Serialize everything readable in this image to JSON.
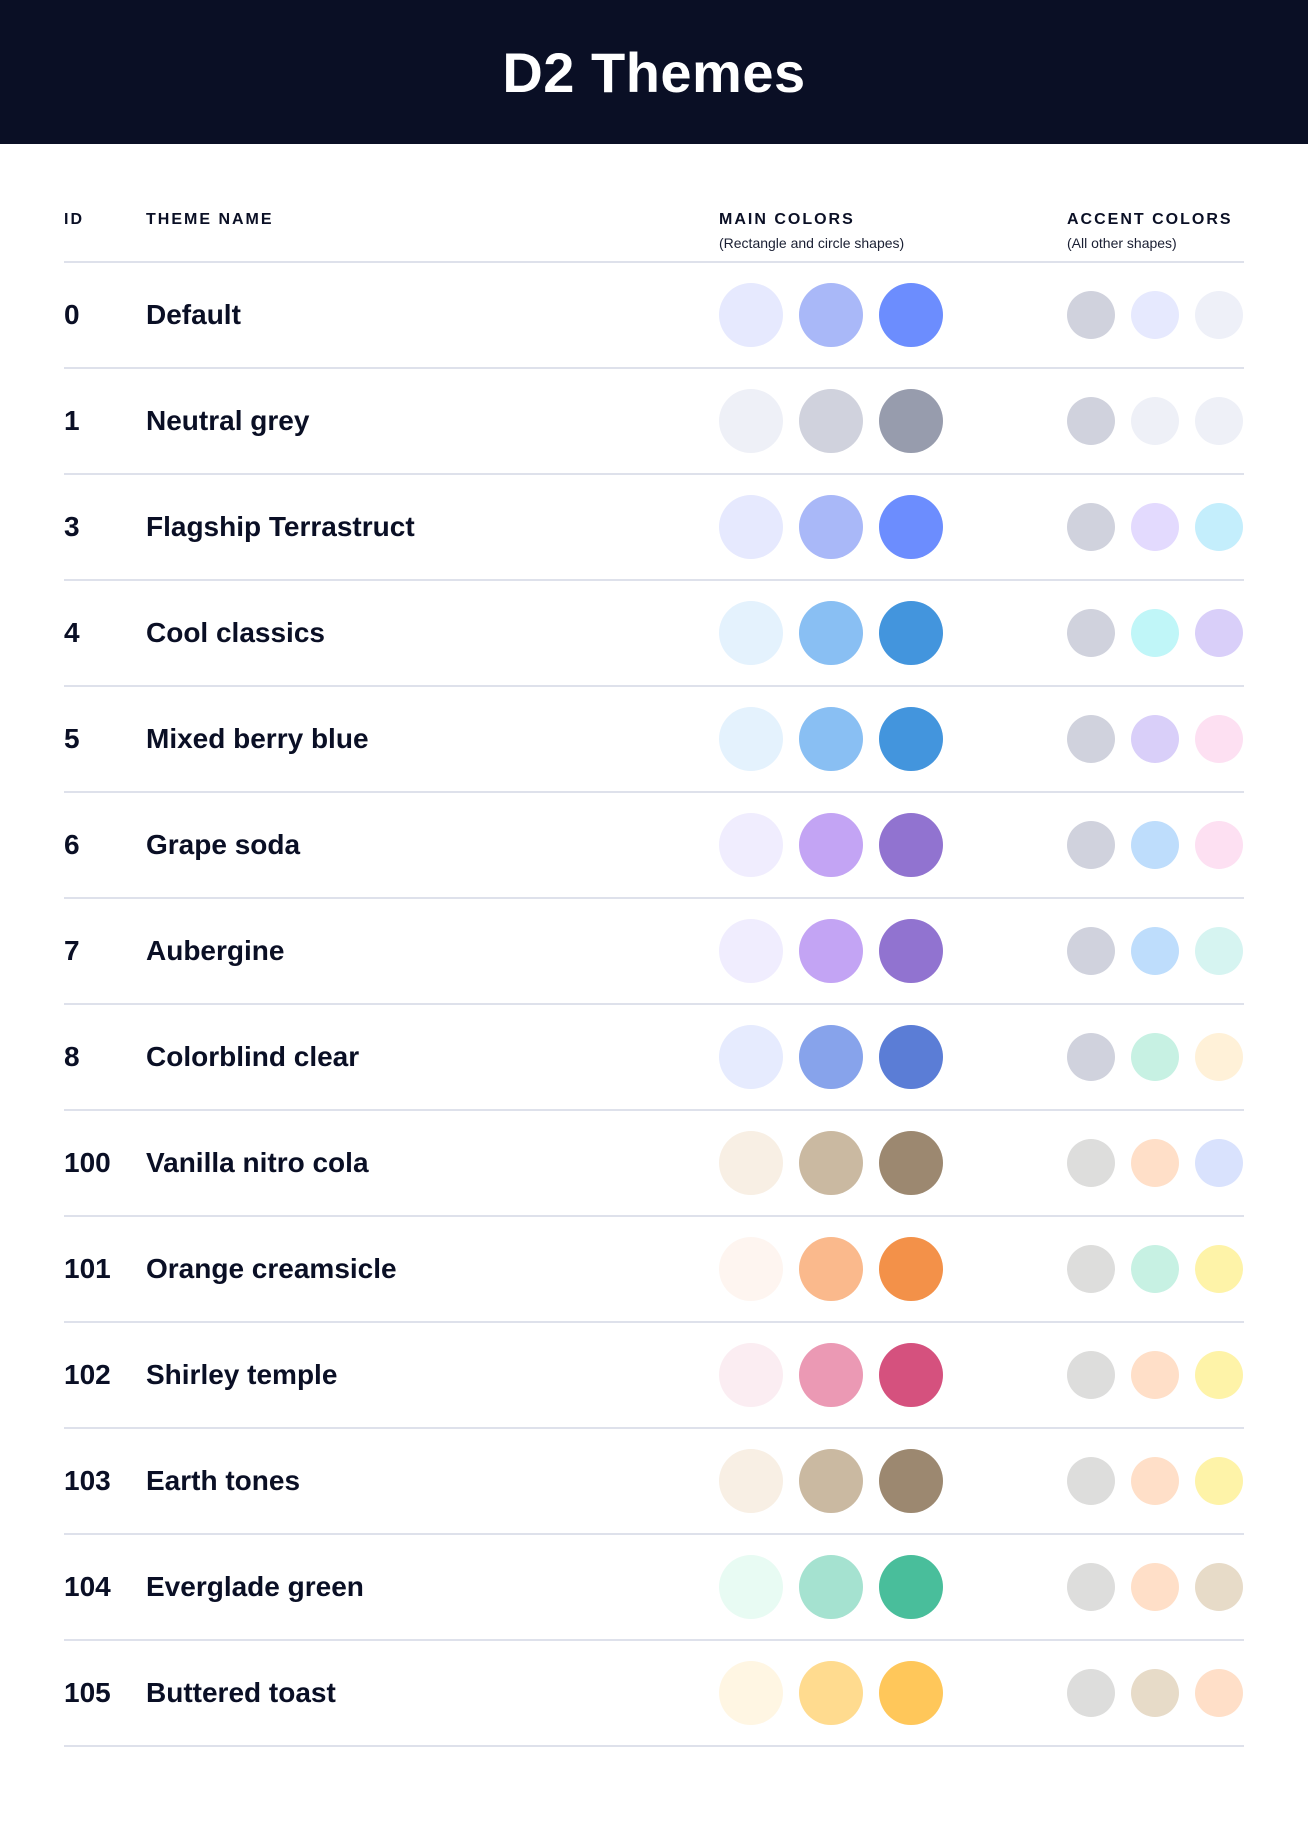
{
  "title": "D2 Themes",
  "columns": {
    "id": "ID",
    "name": "THEME NAME",
    "main": "MAIN COLORS",
    "main_sub": "(Rectangle and circle shapes)",
    "accent": "ACCENT COLORS",
    "accent_sub": "(All other shapes)"
  },
  "themes": [
    {
      "id": "0",
      "name": "Default",
      "main": [
        "#E6E9FE",
        "#A9B8F8",
        "#6C8DFE"
      ],
      "accent": [
        "#D0D2DD",
        "#E6E9FE",
        "#EEF0F8"
      ]
    },
    {
      "id": "1",
      "name": "Neutral grey",
      "main": [
        "#EEF0F7",
        "#D0D2DD",
        "#979CAD"
      ],
      "accent": [
        "#D0D2DD",
        "#EEF0F7",
        "#EEF0F7"
      ]
    },
    {
      "id": "3",
      "name": "Flagship Terrastruct",
      "main": [
        "#E6E9FE",
        "#A9B8F8",
        "#6C8DFE"
      ],
      "accent": [
        "#D0D2DD",
        "#E3DAFE",
        "#C4EEFC"
      ]
    },
    {
      "id": "4",
      "name": "Cool classics",
      "main": [
        "#E4F2FD",
        "#89BFF3",
        "#4395DD"
      ],
      "accent": [
        "#D0D2DD",
        "#C0F6F8",
        "#D9CFF9"
      ]
    },
    {
      "id": "5",
      "name": "Mixed berry blue",
      "main": [
        "#E4F2FD",
        "#89BFF3",
        "#4395DD"
      ],
      "accent": [
        "#D0D2DD",
        "#D9CFF9",
        "#FDE0F2"
      ]
    },
    {
      "id": "6",
      "name": "Grape soda",
      "main": [
        "#F0EDFE",
        "#C3A4F4",
        "#9173D0"
      ],
      "accent": [
        "#D0D2DD",
        "#BEDDFC",
        "#FDE0F2"
      ]
    },
    {
      "id": "7",
      "name": "Aubergine",
      "main": [
        "#F0EDFE",
        "#C3A4F4",
        "#9173D0"
      ],
      "accent": [
        "#D0D2DD",
        "#BEDDFC",
        "#D6F4F1"
      ]
    },
    {
      "id": "8",
      "name": "Colorblind clear",
      "main": [
        "#E6EBFE",
        "#87A3EB",
        "#5B7DD6"
      ],
      "accent": [
        "#D0D2DD",
        "#C7F1E3",
        "#FFF1D8"
      ]
    },
    {
      "id": "100",
      "name": "Vanilla nitro cola",
      "main": [
        "#F8EFE4",
        "#CAB9A1",
        "#9C8870"
      ],
      "accent": [
        "#DDDDDC",
        "#FFDFC8",
        "#D9E2FD"
      ]
    },
    {
      "id": "101",
      "name": "Orange creamsicle",
      "main": [
        "#FEF5F0",
        "#FAB98C",
        "#F39149"
      ],
      "accent": [
        "#DDDDDC",
        "#C7F1E3",
        "#FEF3A8"
      ]
    },
    {
      "id": "102",
      "name": "Shirley temple",
      "main": [
        "#FBEDF2",
        "#EB99B4",
        "#D5517E"
      ],
      "accent": [
        "#DDDDDC",
        "#FFDFC8",
        "#FEF3A8"
      ]
    },
    {
      "id": "103",
      "name": "Earth tones",
      "main": [
        "#F8EFE4",
        "#CAB9A1",
        "#9C8870"
      ],
      "accent": [
        "#DDDDDC",
        "#FFDFC8",
        "#FEF3A8"
      ]
    },
    {
      "id": "104",
      "name": "Everglade green",
      "main": [
        "#E8FBF3",
        "#A5E2D0",
        "#49BE9B"
      ],
      "accent": [
        "#DDDDDC",
        "#FFDFC8",
        "#E7DBC8"
      ]
    },
    {
      "id": "105",
      "name": "Buttered toast",
      "main": [
        "#FFF6E3",
        "#FFDB8F",
        "#FFC75A"
      ],
      "accent": [
        "#DDDDDC",
        "#E7DBC8",
        "#FFDFC8"
      ]
    }
  ]
}
